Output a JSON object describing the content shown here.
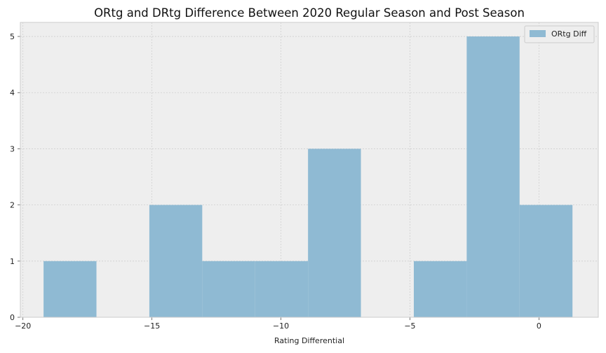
{
  "chart_data": {
    "type": "bar",
    "subtype": "histogram",
    "title": "ORtg and DRtg Difference Between 2020 Regular Season and Post Season",
    "xlabel": "Rating Differential",
    "ylabel": "",
    "xlim": [
      -20.1,
      2.3
    ],
    "ylim": [
      0,
      5.25
    ],
    "x_ticks": [
      -20,
      -15,
      -10,
      -5,
      0
    ],
    "x_tick_labels": [
      "−20",
      "−15",
      "−10",
      "−5",
      "0"
    ],
    "y_ticks": [
      0,
      1,
      2,
      3,
      4,
      5
    ],
    "y_tick_labels": [
      "0",
      "1",
      "2",
      "3",
      "4",
      "5"
    ],
    "grid": true,
    "legend_position": "top-right",
    "series": [
      {
        "name": "ORtg Diff",
        "color": "#8fbad3",
        "bins": [
          {
            "x0": -19.2,
            "x1": -17.15,
            "count": 1
          },
          {
            "x0": -17.15,
            "x1": -15.1,
            "count": 0
          },
          {
            "x0": -15.1,
            "x1": -13.05,
            "count": 2
          },
          {
            "x0": -13.05,
            "x1": -11.0,
            "count": 1
          },
          {
            "x0": -11.0,
            "x1": -8.95,
            "count": 1
          },
          {
            "x0": -8.95,
            "x1": -6.9,
            "count": 3
          },
          {
            "x0": -6.9,
            "x1": -4.85,
            "count": 0
          },
          {
            "x0": -4.85,
            "x1": -2.8,
            "count": 1
          },
          {
            "x0": -2.8,
            "x1": -0.75,
            "count": 5
          },
          {
            "x0": -0.75,
            "x1": 1.3,
            "count": 2
          }
        ]
      }
    ]
  }
}
